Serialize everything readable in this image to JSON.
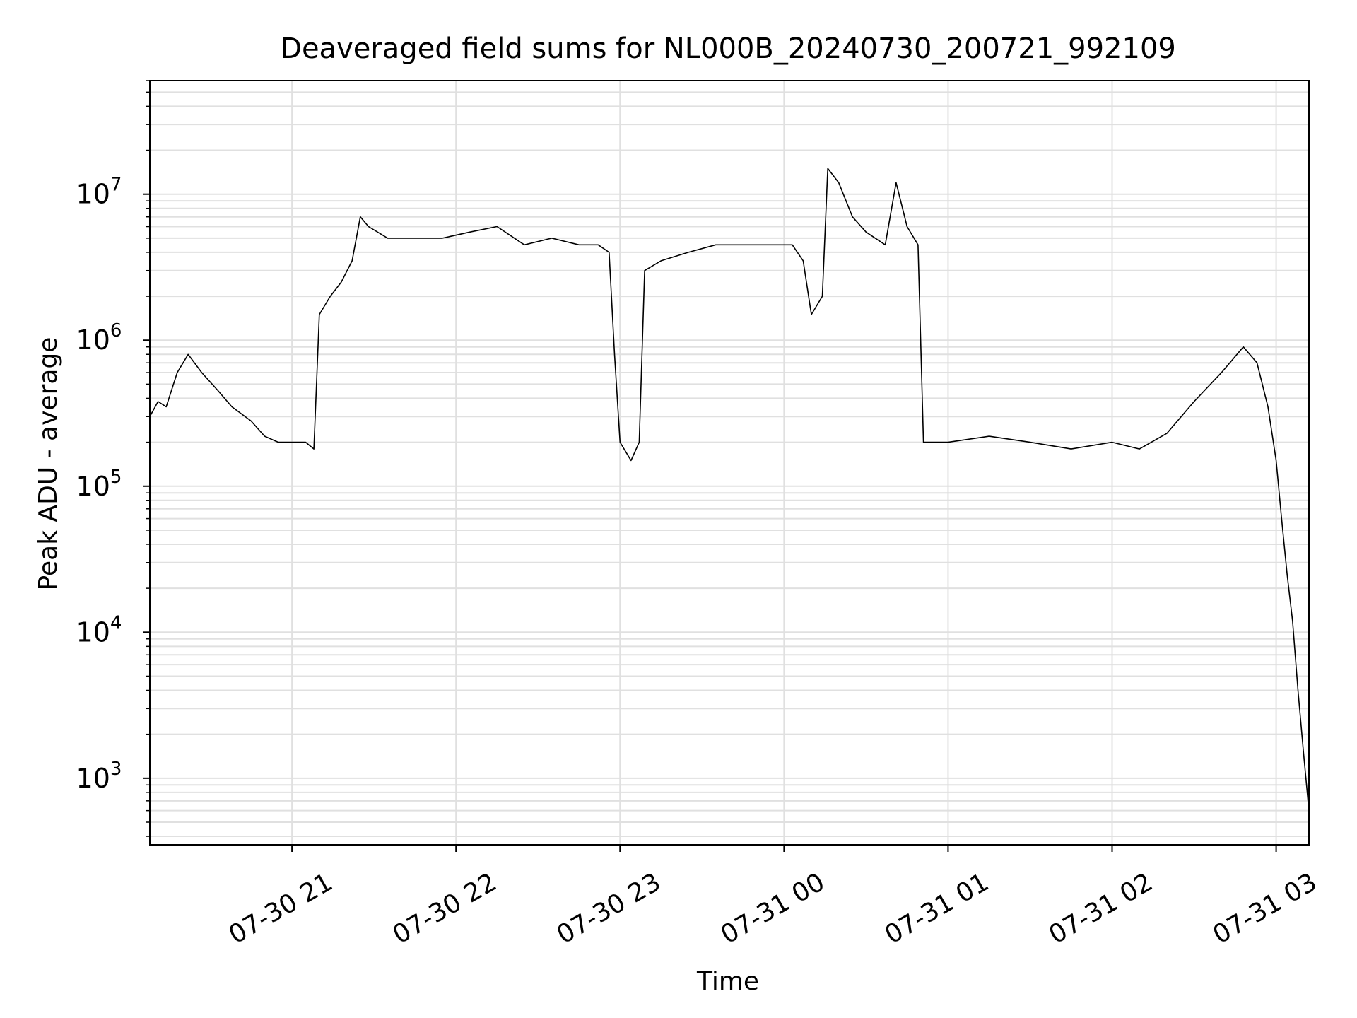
{
  "chart_data": {
    "type": "line",
    "title": "Deaveraged field sums for NL000B_20240730_200721_992109",
    "xlabel": "Time",
    "ylabel": "Peak ADU - average",
    "yscale": "log",
    "ylim": [
      350,
      60000000
    ],
    "xlim": [
      "07-30 20:08",
      "07-31 03:12"
    ],
    "grid": true,
    "line_color": "#000000",
    "grid_color": "#e0e0e0",
    "x_ticks": [
      {
        "label": "07-30 21",
        "t": "21:00"
      },
      {
        "label": "07-30 22",
        "t": "22:00"
      },
      {
        "label": "07-30 23",
        "t": "23:00"
      },
      {
        "label": "07-31 00",
        "t": "00:00"
      },
      {
        "label": "07-31 01",
        "t": "01:00"
      },
      {
        "label": "07-31 02",
        "t": "02:00"
      },
      {
        "label": "07-31 03",
        "t": "03:00"
      }
    ],
    "y_ticks": [
      {
        "base": "10",
        "exp": "3",
        "value": 1000
      },
      {
        "base": "10",
        "exp": "4",
        "value": 10000
      },
      {
        "base": "10",
        "exp": "5",
        "value": 100000
      },
      {
        "base": "10",
        "exp": "6",
        "value": 1000000
      },
      {
        "base": "10",
        "exp": "7",
        "value": 10000000
      }
    ],
    "series": [
      {
        "points": [
          [
            "07-30 20:08",
            300000
          ],
          [
            "07-30 20:11",
            380000
          ],
          [
            "07-30 20:14",
            350000
          ],
          [
            "07-30 20:18",
            600000
          ],
          [
            "07-30 20:22",
            800000
          ],
          [
            "07-30 20:27",
            600000
          ],
          [
            "07-30 20:33",
            450000
          ],
          [
            "07-30 20:38",
            350000
          ],
          [
            "07-30 20:45",
            280000
          ],
          [
            "07-30 20:50",
            220000
          ],
          [
            "07-30 20:55",
            200000
          ],
          [
            "07-30 21:00",
            200000
          ],
          [
            "07-30 21:05",
            200000
          ],
          [
            "07-30 21:08",
            180000
          ],
          [
            "07-30 21:10",
            1500000
          ],
          [
            "07-30 21:14",
            2000000
          ],
          [
            "07-30 21:18",
            2500000
          ],
          [
            "07-30 21:22",
            3500000
          ],
          [
            "07-30 21:25",
            7000000
          ],
          [
            "07-30 21:28",
            6000000
          ],
          [
            "07-30 21:35",
            5000000
          ],
          [
            "07-30 21:45",
            5000000
          ],
          [
            "07-30 21:55",
            5000000
          ],
          [
            "07-30 22:05",
            5500000
          ],
          [
            "07-30 22:15",
            6000000
          ],
          [
            "07-30 22:25",
            4500000
          ],
          [
            "07-30 22:35",
            5000000
          ],
          [
            "07-30 22:45",
            4500000
          ],
          [
            "07-30 22:52",
            4500000
          ],
          [
            "07-30 22:56",
            4000000
          ],
          [
            "07-30 22:58",
            800000
          ],
          [
            "07-30 23:00",
            200000
          ],
          [
            "07-30 23:04",
            150000
          ],
          [
            "07-30 23:07",
            200000
          ],
          [
            "07-30 23:09",
            3000000
          ],
          [
            "07-30 23:15",
            3500000
          ],
          [
            "07-30 23:25",
            4000000
          ],
          [
            "07-30 23:35",
            4500000
          ],
          [
            "07-30 23:45",
            4500000
          ],
          [
            "07-30 23:55",
            4500000
          ],
          [
            "07-31 00:03",
            4500000
          ],
          [
            "07-31 00:07",
            3500000
          ],
          [
            "07-31 00:10",
            1500000
          ],
          [
            "07-31 00:14",
            2000000
          ],
          [
            "07-31 00:16",
            15000000
          ],
          [
            "07-31 00:20",
            12000000
          ],
          [
            "07-31 00:25",
            7000000
          ],
          [
            "07-31 00:30",
            5500000
          ],
          [
            "07-31 00:37",
            4500000
          ],
          [
            "07-31 00:41",
            12000000
          ],
          [
            "07-31 00:45",
            6000000
          ],
          [
            "07-31 00:49",
            4500000
          ],
          [
            "07-31 00:51",
            200000
          ],
          [
            "07-31 01:00",
            200000
          ],
          [
            "07-31 01:15",
            220000
          ],
          [
            "07-31 01:30",
            200000
          ],
          [
            "07-31 01:45",
            180000
          ],
          [
            "07-31 02:00",
            200000
          ],
          [
            "07-31 02:10",
            180000
          ],
          [
            "07-31 02:20",
            230000
          ],
          [
            "07-31 02:30",
            380000
          ],
          [
            "07-31 02:40",
            600000
          ],
          [
            "07-31 02:48",
            900000
          ],
          [
            "07-31 02:53",
            700000
          ],
          [
            "07-31 02:57",
            350000
          ],
          [
            "07-31 03:00",
            150000
          ],
          [
            "07-31 03:02",
            60000
          ],
          [
            "07-31 03:04",
            25000
          ],
          [
            "07-31 03:06",
            12000
          ],
          [
            "07-31 03:08",
            4000
          ],
          [
            "07-31 03:10",
            1500
          ],
          [
            "07-31 03:12",
            600
          ]
        ]
      }
    ]
  }
}
